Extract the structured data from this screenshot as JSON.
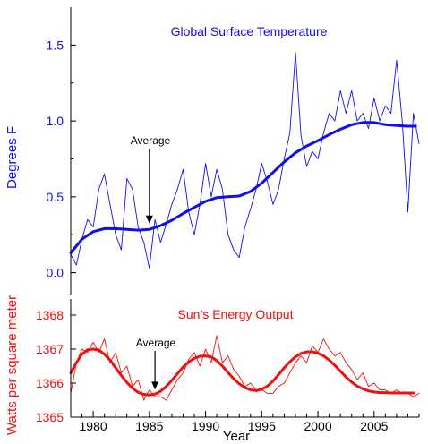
{
  "colors": {
    "temperature": "#1010e6",
    "solar": "#ee1111",
    "axis": "#000000",
    "annotation": "#000000"
  },
  "chart_data": [
    {
      "type": "line",
      "title": "Global Surface Temperature",
      "ylabel": "Degrees F",
      "xlim": [
        1978,
        2009
      ],
      "ylim": [
        -0.15,
        1.75
      ],
      "yticks": [
        0.0,
        0.5,
        1.0,
        1.5
      ],
      "ytick_labels": [
        "0.0",
        "0.5",
        "1.0",
        "1.5"
      ],
      "annotation": {
        "text": "Average",
        "arrow_to": {
          "x": 1985,
          "y": 0.3
        }
      },
      "series": [
        {
          "style": "monthly-thin",
          "x": [
            1978.0,
            1978.5,
            1979.0,
            1979.5,
            1980.0,
            1980.5,
            1981.0,
            1981.5,
            1982.0,
            1982.5,
            1983.0,
            1983.5,
            1984.0,
            1984.5,
            1985.0,
            1985.5,
            1986.0,
            1986.5,
            1987.0,
            1987.5,
            1988.0,
            1988.5,
            1989.0,
            1989.5,
            1990.0,
            1990.5,
            1991.0,
            1991.5,
            1992.0,
            1992.5,
            1993.0,
            1993.5,
            1994.0,
            1994.5,
            1995.0,
            1995.5,
            1996.0,
            1996.5,
            1997.0,
            1997.5,
            1998.0,
            1998.5,
            1999.0,
            1999.5,
            2000.0,
            2000.5,
            2001.0,
            2001.5,
            2002.0,
            2002.5,
            2003.0,
            2003.5,
            2004.0,
            2004.5,
            2005.0,
            2005.5,
            2006.0,
            2006.5,
            2007.0,
            2007.5,
            2008.0,
            2008.5,
            2009.0
          ],
          "y": [
            0.12,
            0.05,
            0.22,
            0.35,
            0.3,
            0.55,
            0.65,
            0.45,
            0.25,
            0.15,
            0.62,
            0.55,
            0.3,
            0.2,
            0.03,
            0.35,
            0.2,
            0.32,
            0.45,
            0.55,
            0.68,
            0.4,
            0.25,
            0.45,
            0.72,
            0.5,
            0.68,
            0.55,
            0.25,
            0.15,
            0.1,
            0.3,
            0.42,
            0.55,
            0.72,
            0.6,
            0.45,
            0.55,
            0.75,
            0.92,
            1.45,
            0.9,
            0.7,
            0.8,
            0.75,
            0.92,
            1.05,
            1.0,
            1.2,
            1.05,
            1.2,
            1.0,
            1.05,
            0.95,
            1.15,
            1.0,
            1.1,
            1.05,
            1.4,
            1.0,
            0.4,
            1.05,
            0.85
          ]
        },
        {
          "name": "Average",
          "style": "smoothed-thick",
          "x": [
            1978.0,
            1979,
            1980,
            1981,
            1982,
            1983,
            1984,
            1985,
            1986,
            1987,
            1988,
            1989,
            1990,
            1991,
            1992,
            1993,
            1994,
            1995,
            1996,
            1997,
            1998,
            1999,
            2000,
            2001,
            2002,
            2003,
            2004,
            2005,
            2006,
            2007,
            2008,
            2008.7
          ],
          "y": [
            0.13,
            0.22,
            0.27,
            0.29,
            0.29,
            0.285,
            0.28,
            0.285,
            0.31,
            0.345,
            0.39,
            0.43,
            0.47,
            0.495,
            0.5,
            0.505,
            0.535,
            0.59,
            0.66,
            0.73,
            0.79,
            0.835,
            0.87,
            0.91,
            0.945,
            0.975,
            0.99,
            0.99,
            0.975,
            0.97,
            0.965,
            0.965
          ]
        }
      ]
    },
    {
      "type": "line",
      "title": "Sun’s Energy Output",
      "ylabel": "Watts per square meter",
      "xlabel": "Year",
      "xlim": [
        1978,
        2009
      ],
      "ylim": [
        1365,
        1368
      ],
      "yticks": [
        1365,
        1366,
        1367,
        1368
      ],
      "ytick_labels": [
        "1365",
        "1366",
        "1367",
        "1368"
      ],
      "xticks": [
        1980,
        1985,
        1990,
        1995,
        2000,
        2005
      ],
      "xtick_labels": [
        "1980",
        "1985",
        "1990",
        "1995",
        "2000",
        "2005"
      ],
      "annotation": {
        "text": "Average",
        "arrow_to": {
          "x": 1985.5,
          "y": 1365.7
        }
      },
      "series": [
        {
          "style": "monthly-thin",
          "x": [
            1978.0,
            1978.5,
            1979.0,
            1979.5,
            1980.0,
            1980.5,
            1981.0,
            1981.5,
            1982.0,
            1982.5,
            1983.0,
            1983.5,
            1984.0,
            1984.5,
            1985.0,
            1985.5,
            1986.0,
            1986.5,
            1987.0,
            1987.5,
            1988.0,
            1988.5,
            1989.0,
            1989.5,
            1990.0,
            1990.5,
            1991.0,
            1991.5,
            1992.0,
            1992.5,
            1993.0,
            1993.5,
            1994.0,
            1994.5,
            1995.0,
            1995.5,
            1996.0,
            1996.5,
            1997.0,
            1997.5,
            1998.0,
            1998.5,
            1999.0,
            1999.5,
            2000.0,
            2000.5,
            2001.0,
            2001.5,
            2002.0,
            2002.5,
            2003.0,
            2003.5,
            2004.0,
            2004.5,
            2005.0,
            2005.5,
            2006.0,
            2006.5,
            2007.0,
            2007.5,
            2008.0,
            2008.5,
            2009.0
          ],
          "y": [
            1365.7,
            1366.6,
            1367.0,
            1366.9,
            1367.2,
            1366.9,
            1367.3,
            1366.6,
            1366.9,
            1366.3,
            1366.5,
            1365.9,
            1366.1,
            1365.5,
            1365.8,
            1365.6,
            1365.6,
            1365.5,
            1365.8,
            1366.1,
            1366.3,
            1366.7,
            1366.9,
            1366.5,
            1367.0,
            1366.6,
            1367.4,
            1366.6,
            1366.8,
            1366.4,
            1366.2,
            1365.9,
            1366.0,
            1365.8,
            1365.8,
            1365.7,
            1365.7,
            1365.9,
            1366.0,
            1366.3,
            1366.6,
            1366.8,
            1366.6,
            1367.1,
            1366.9,
            1367.3,
            1367.0,
            1366.8,
            1366.9,
            1366.6,
            1366.4,
            1366.1,
            1366.3,
            1365.9,
            1366.0,
            1365.8,
            1365.8,
            1365.7,
            1365.8,
            1365.7,
            1365.7,
            1365.6,
            1365.7
          ]
        },
        {
          "name": "Average",
          "style": "smoothed-thick",
          "x": [
            1978.0,
            1978.5,
            1979,
            1979.5,
            1980,
            1980.5,
            1981,
            1981.5,
            1982,
            1982.5,
            1983,
            1983.5,
            1984,
            1984.5,
            1985,
            1985.5,
            1986,
            1986.5,
            1987,
            1987.5,
            1988,
            1988.5,
            1989,
            1989.5,
            1990,
            1990.5,
            1991,
            1991.5,
            1992,
            1992.5,
            1993,
            1993.5,
            1994,
            1994.5,
            1995,
            1995.5,
            1996,
            1996.5,
            1997,
            1997.5,
            1998,
            1998.5,
            1999,
            1999.5,
            2000,
            2000.5,
            2001,
            2001.5,
            2002,
            2002.5,
            2003,
            2003.5,
            2004,
            2004.5,
            2005,
            2005.5,
            2006,
            2006.5,
            2007,
            2007.5,
            2008,
            2008.5
          ],
          "y": [
            1366.3,
            1366.6,
            1366.85,
            1366.98,
            1367.0,
            1366.97,
            1366.85,
            1366.68,
            1366.45,
            1366.22,
            1366.02,
            1365.85,
            1365.73,
            1365.67,
            1365.65,
            1365.68,
            1365.76,
            1365.9,
            1366.08,
            1366.28,
            1366.47,
            1366.62,
            1366.73,
            1366.79,
            1366.8,
            1366.77,
            1366.66,
            1366.5,
            1366.31,
            1366.13,
            1365.98,
            1365.87,
            1365.8,
            1365.78,
            1365.82,
            1365.91,
            1366.06,
            1366.25,
            1366.45,
            1366.63,
            1366.77,
            1366.87,
            1366.92,
            1366.92,
            1366.88,
            1366.8,
            1366.68,
            1366.52,
            1366.35,
            1366.18,
            1366.03,
            1365.91,
            1365.83,
            1365.77,
            1365.74,
            1365.72,
            1365.72,
            1365.71,
            1365.71,
            1365.71,
            1365.71,
            1365.71
          ]
        }
      ]
    }
  ]
}
